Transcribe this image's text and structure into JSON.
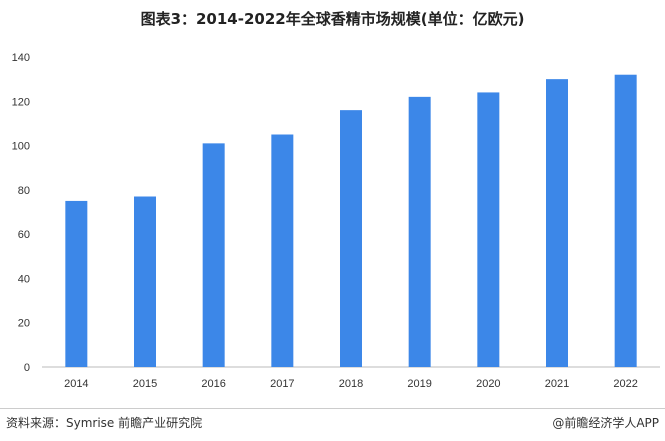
{
  "title": "图表3：2014-2022年全球香精市场规模(单位：亿欧元)",
  "chart_data": {
    "type": "bar",
    "categories": [
      "2014",
      "2015",
      "2016",
      "2017",
      "2018",
      "2019",
      "2020",
      "2021",
      "2022"
    ],
    "values": [
      75,
      77,
      101,
      105,
      116,
      122,
      124,
      130,
      132
    ],
    "ylim": [
      0,
      140
    ],
    "yticks": [
      0,
      20,
      40,
      60,
      80,
      100,
      120,
      140
    ],
    "bar_color": "#3c87e8",
    "grid": false,
    "legend": "none"
  },
  "footer": {
    "source": "资料来源：Symrise 前瞻产业研究院",
    "brand": "@前瞻经济学人APP"
  }
}
